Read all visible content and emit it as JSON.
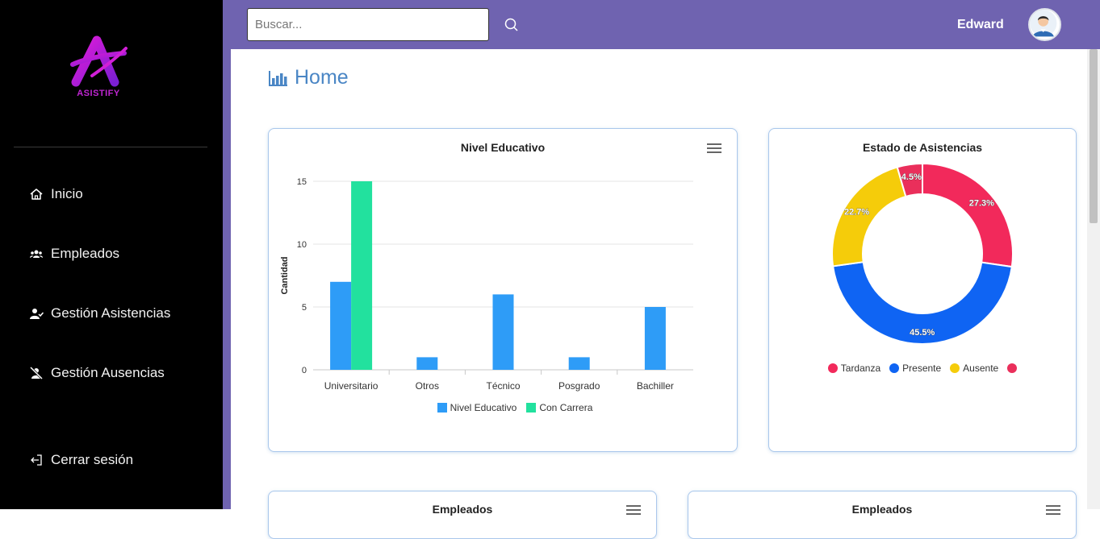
{
  "sidebar": {
    "brand": "ASISTIFY",
    "items": [
      {
        "label": "Inicio"
      },
      {
        "label": "Empleados"
      },
      {
        "label": "Gestión Asistencias"
      },
      {
        "label": "Gestión Ausencias"
      }
    ],
    "logout": "Cerrar sesión"
  },
  "header": {
    "search_placeholder": "Buscar...",
    "user_name": "Edward"
  },
  "page": {
    "title": "Home"
  },
  "bar_card": {
    "title": "Nivel Educativo",
    "chart_data": {
      "type": "bar",
      "title": "Nivel Educativo",
      "ylabel": "Cantidad",
      "xlabel": "",
      "categories": [
        "Universitario",
        "Otros",
        "Técnico",
        "Posgrado",
        "Bachiller"
      ],
      "series": [
        {
          "name": "Nivel Educativo",
          "color": "#2e9cf7",
          "values": [
            7,
            1,
            6,
            1,
            5
          ]
        },
        {
          "name": "Con Carrera",
          "color": "#22e19e",
          "values": [
            15,
            0,
            0,
            0,
            0
          ]
        }
      ],
      "ylim": [
        0,
        15
      ],
      "yticks": [
        "0",
        "5",
        "10",
        "15"
      ],
      "legend": "bottom"
    }
  },
  "donut_card": {
    "title": "Estado de Asistencias",
    "chart_data": {
      "type": "pie",
      "title": "Estado de Asistencias",
      "slices": [
        {
          "name": "Tardanza",
          "value": 27.3,
          "label": "27.3%",
          "color": "#f2295b"
        },
        {
          "name": "Presente",
          "value": 45.5,
          "label": "45.5%",
          "color": "#0f64f3"
        },
        {
          "name": "Ausente",
          "value": 22.7,
          "label": "22.7%",
          "color": "#f5cc0a"
        },
        {
          "name": "",
          "value": 4.5,
          "label": "4.5%",
          "color": "#ea2f5b"
        }
      ],
      "legend": "bottom"
    }
  },
  "bottom_cards": [
    {
      "title": "Empleados"
    },
    {
      "title": "Empleados"
    }
  ]
}
